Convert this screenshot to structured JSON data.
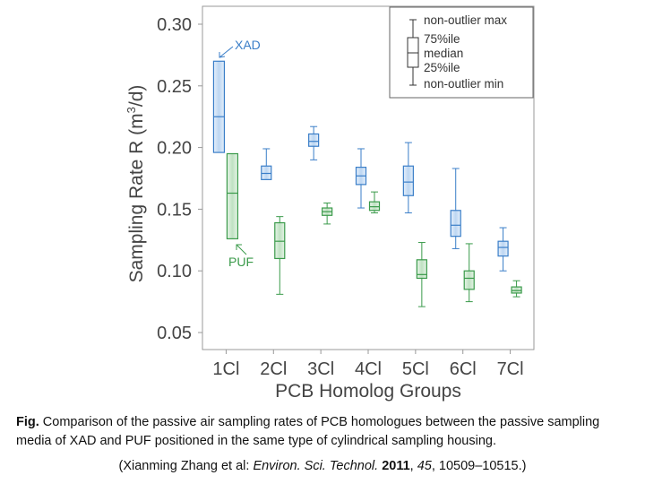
{
  "chart_data": {
    "type": "box",
    "title": "",
    "xlabel": "PCB Homolog Groups",
    "ylabel_main": "Sampling Rate R (m",
    "ylabel_sup": "3",
    "ylabel_end": "/d)",
    "ylim": [
      0.05,
      0.3
    ],
    "yticks": [
      "0.30",
      "0.25",
      "0.20",
      "0.15",
      "0.10",
      "0.05"
    ],
    "ytick_values": [
      0.3,
      0.25,
      0.2,
      0.15,
      0.1,
      0.05
    ],
    "categories": [
      "1Cl",
      "2Cl",
      "3Cl",
      "4Cl",
      "5Cl",
      "6Cl",
      "7Cl"
    ],
    "grid": false,
    "series": [
      {
        "name": "XAD",
        "color": "#3a7ec8",
        "fill": "#c4dbf4",
        "boxes": [
          {
            "min": 0.196,
            "q1": 0.196,
            "median": 0.225,
            "q3": 0.27,
            "max": 0.27
          },
          {
            "min": 0.174,
            "q1": 0.174,
            "median": 0.179,
            "q3": 0.185,
            "max": 0.199
          },
          {
            "min": 0.19,
            "q1": 0.201,
            "median": 0.205,
            "q3": 0.211,
            "max": 0.217
          },
          {
            "min": 0.151,
            "q1": 0.17,
            "median": 0.177,
            "q3": 0.184,
            "max": 0.199
          },
          {
            "min": 0.147,
            "q1": 0.161,
            "median": 0.172,
            "q3": 0.185,
            "max": 0.204
          },
          {
            "min": 0.118,
            "q1": 0.128,
            "median": 0.137,
            "q3": 0.149,
            "max": 0.183
          },
          {
            "min": 0.1,
            "q1": 0.112,
            "median": 0.119,
            "q3": 0.124,
            "max": 0.135
          }
        ]
      },
      {
        "name": "PUF",
        "color": "#3a9a4a",
        "fill": "#c8e6c9",
        "boxes": [
          {
            "min": 0.126,
            "q1": 0.126,
            "median": 0.163,
            "q3": 0.195,
            "max": 0.195
          },
          {
            "min": 0.081,
            "q1": 0.11,
            "median": 0.124,
            "q3": 0.139,
            "max": 0.144
          },
          {
            "min": 0.138,
            "q1": 0.145,
            "median": 0.148,
            "q3": 0.151,
            "max": 0.155
          },
          {
            "min": 0.147,
            "q1": 0.149,
            "median": 0.152,
            "q3": 0.156,
            "max": 0.164
          },
          {
            "min": 0.071,
            "q1": 0.094,
            "median": 0.097,
            "q3": 0.109,
            "max": 0.123
          },
          {
            "min": 0.075,
            "q1": 0.085,
            "median": 0.094,
            "q3": 0.1,
            "max": 0.122
          },
          {
            "min": 0.079,
            "q1": 0.082,
            "median": 0.084,
            "q3": 0.087,
            "max": 0.092
          }
        ]
      }
    ],
    "annotations": [
      {
        "text": "XAD",
        "target_series": 0,
        "target_category": 0
      },
      {
        "text": "PUF",
        "target_series": 1,
        "target_category": 0
      }
    ],
    "legend": {
      "position": "top-right",
      "labels": [
        "non-outlier max",
        "75%ile",
        "median",
        "25%ile",
        "non-outlier min"
      ]
    }
  },
  "caption": {
    "prefix": "Fig.",
    "text": " Comparison of the passive air sampling rates of PCB homologues between the passive sampling media of XAD and PUF positioned in the same type of cylindrical sampling housing."
  },
  "reference": {
    "open": "(Xianming Zhang et al: ",
    "journal": "Environ. Sci. Technol.",
    "sep1": " ",
    "year": "2011",
    "sep2": ", ",
    "volume": "45",
    "pages": ", 10509–10515.)"
  }
}
